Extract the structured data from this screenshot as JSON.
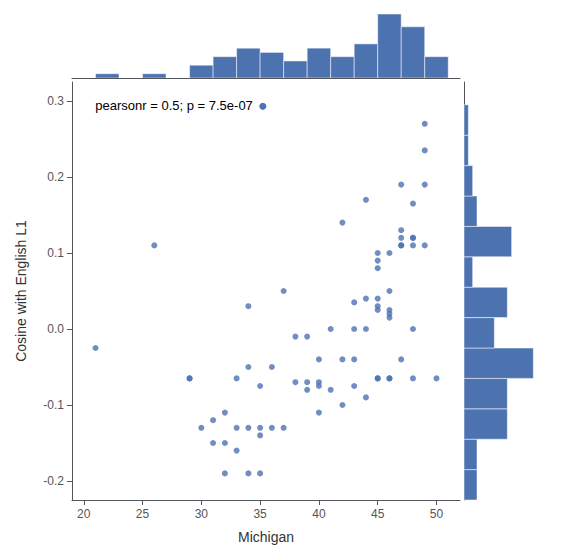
{
  "chart_data": [
    {
      "type": "histogram",
      "bins": [
        19,
        21,
        23,
        25,
        27,
        29,
        31,
        33,
        35,
        37,
        39,
        41,
        43,
        45,
        47,
        49,
        51
      ],
      "values": [
        0,
        1,
        0,
        1,
        0,
        3,
        5,
        7,
        6,
        4,
        7,
        5,
        8,
        15,
        12,
        5
      ],
      "color": "#4c72b0",
      "xlim": [
        19,
        52
      ],
      "tick_labels": false
    },
    {
      "type": "scatter",
      "x": [
        21,
        26,
        29,
        29,
        30,
        31,
        31,
        32,
        32,
        32,
        33,
        33,
        33,
        34,
        34,
        34,
        34,
        35,
        35,
        35,
        35,
        36,
        36,
        37,
        37,
        38,
        38,
        39,
        39,
        39,
        40,
        40,
        40,
        40,
        41,
        41,
        42,
        42,
        42,
        43,
        43,
        43,
        43,
        44,
        44,
        44,
        44,
        45,
        45,
        45,
        45,
        45,
        45,
        45,
        45,
        46,
        46,
        46,
        46,
        46,
        46,
        46,
        47,
        47,
        47,
        47,
        47,
        47,
        48,
        48,
        48,
        48,
        48,
        48,
        49,
        49,
        49,
        49,
        50
      ],
      "y": [
        -0.025,
        0.11,
        -0.065,
        -0.065,
        -0.13,
        -0.12,
        -0.15,
        -0.11,
        -0.15,
        -0.19,
        -0.065,
        -0.13,
        -0.16,
        0.03,
        -0.05,
        -0.13,
        -0.19,
        -0.075,
        -0.13,
        -0.14,
        -0.19,
        -0.05,
        -0.13,
        0.05,
        -0.13,
        -0.01,
        -0.07,
        -0.01,
        -0.07,
        -0.08,
        -0.04,
        -0.07,
        -0.075,
        -0.11,
        0.0,
        -0.08,
        0.14,
        -0.04,
        -0.1,
        0.035,
        0.0,
        -0.04,
        -0.075,
        0.17,
        0.04,
        0.0,
        -0.09,
        0.1,
        0.09,
        0.08,
        0.04,
        0.03,
        0.025,
        -0.065,
        -0.065,
        0.1,
        0.05,
        0.025,
        0.02,
        0.015,
        -0.065,
        -0.065,
        0.19,
        0.13,
        0.12,
        0.11,
        0.11,
        -0.04,
        0.165,
        0.12,
        0.12,
        0.11,
        0.0,
        -0.065,
        0.235,
        0.19,
        0.11,
        0.27,
        -0.065
      ],
      "color": "#4c72b0",
      "xlabel": "Michigan",
      "ylabel": "Cosine with English L1",
      "annotation": "pearsonr = 0.5; p = 7.5e-07",
      "xlim": [
        19,
        52
      ],
      "ylim": [
        -0.225,
        0.325
      ],
      "xticks": [
        20,
        25,
        30,
        35,
        40,
        45,
        50
      ],
      "yticks": [
        -0.2,
        -0.1,
        {
          "value": 0.0,
          "label": "0.0"
        },
        0.1,
        0.2,
        0.3
      ],
      "grid": false
    },
    {
      "type": "histogram",
      "orientation": "horizontal",
      "bins": [
        -0.225,
        -0.185,
        -0.145,
        -0.105,
        -0.065,
        -0.025,
        0.015,
        0.055,
        0.095,
        0.135,
        0.175,
        0.215,
        0.255,
        0.295
      ],
      "values": [
        3,
        3,
        10,
        10,
        16,
        7,
        10,
        2,
        11,
        3,
        2,
        1,
        1
      ],
      "color": "#4c72b0",
      "ylim": [
        -0.225,
        0.325
      ],
      "tick_labels": false
    }
  ]
}
